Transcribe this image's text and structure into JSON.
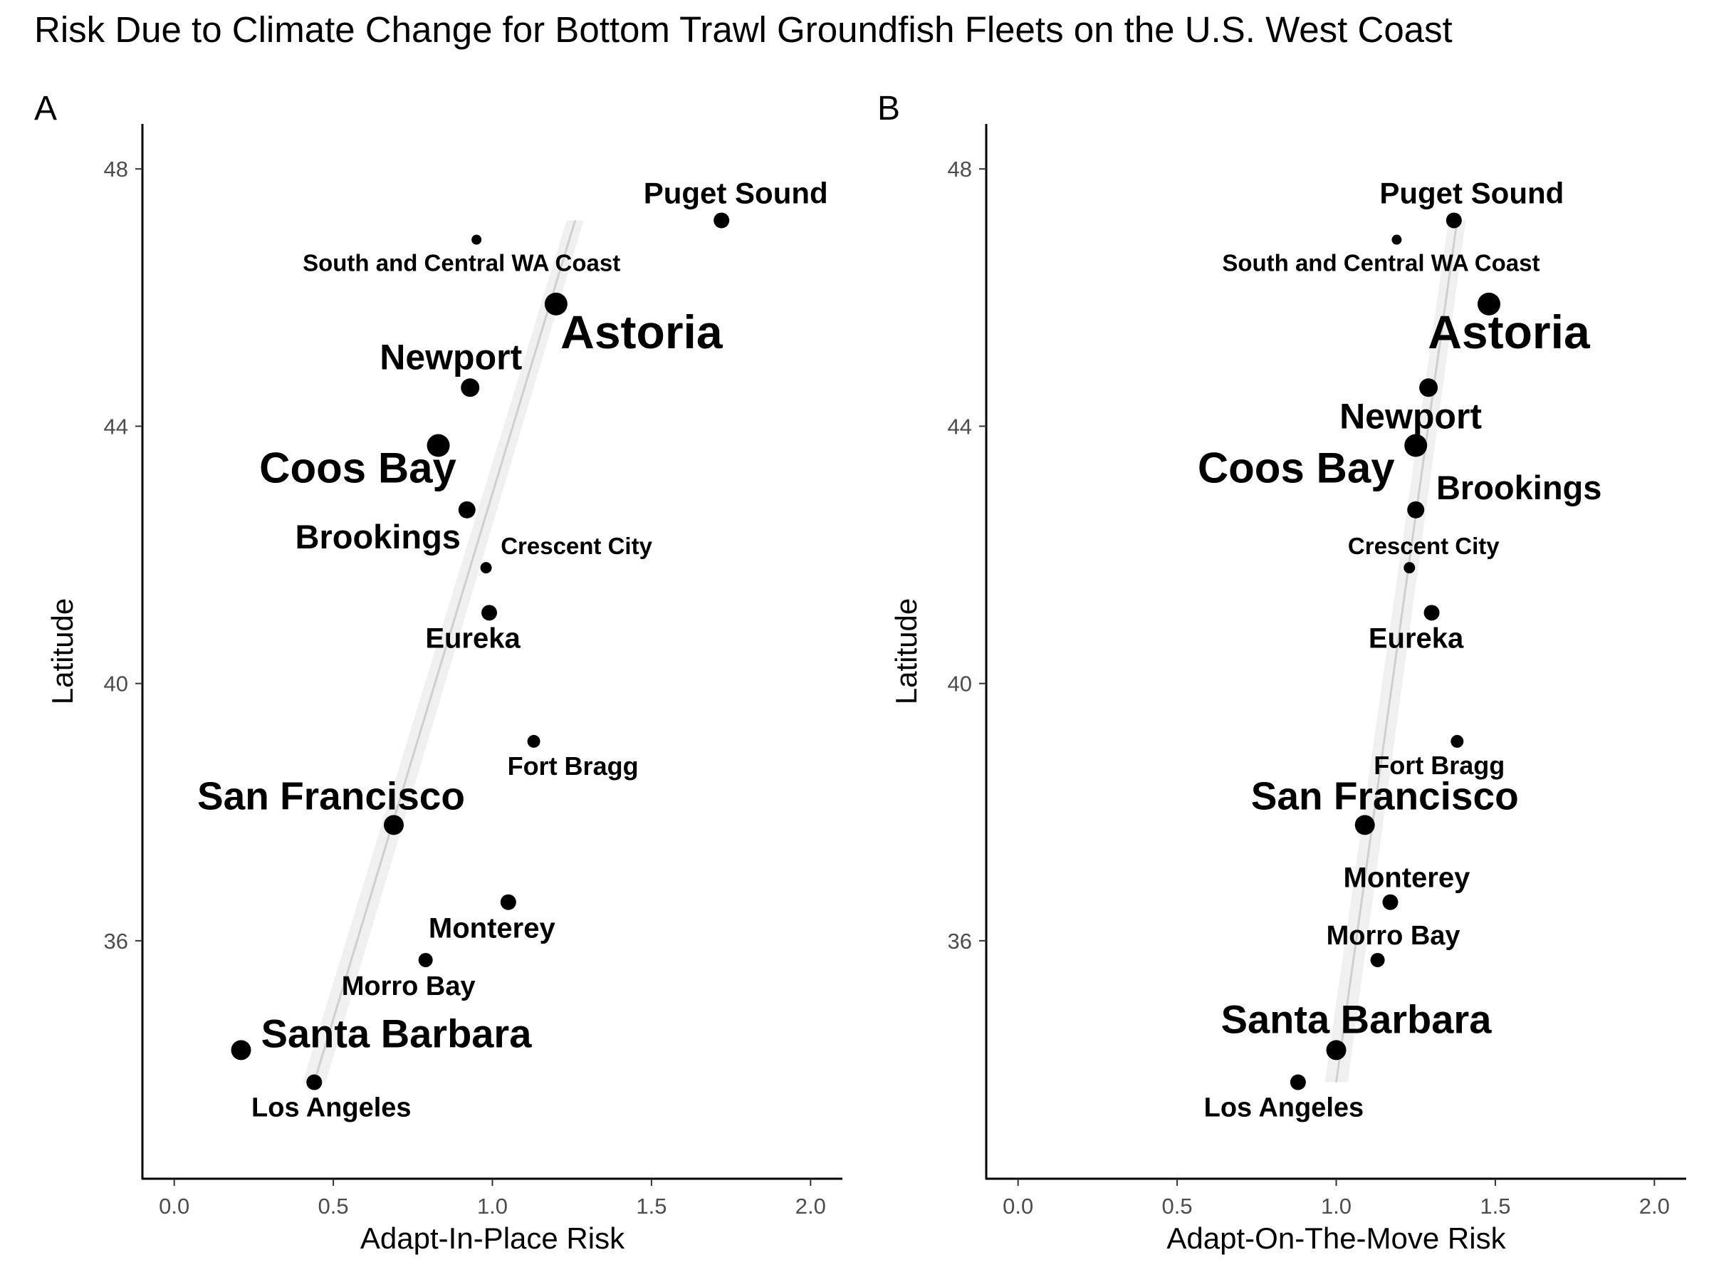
{
  "title": "Risk Due to Climate Change for Bottom Trawl Groundfish Fleets on the U.S. West Coast",
  "chart_data": [
    {
      "type": "scatter",
      "panel_label": "A",
      "xlabel": "Adapt-In-Place Risk",
      "ylabel": "Latitude",
      "xlim": [
        -0.1,
        2.1
      ],
      "ylim": [
        32.3,
        48.7
      ],
      "x_ticks": [
        "0.0",
        "0.5",
        "1.0",
        "1.5",
        "2.0"
      ],
      "y_ticks": [
        "36",
        "40",
        "44",
        "48"
      ],
      "grid": false,
      "trend_line": {
        "x": [
          0.44,
          1.26
        ],
        "y": [
          33.8,
          47.2
        ]
      },
      "points": [
        {
          "name": "Puget Sound",
          "x": 1.72,
          "y": 47.2
        },
        {
          "name": "South and Central WA Coast",
          "x": 0.95,
          "y": 46.9
        },
        {
          "name": "Astoria",
          "x": 1.2,
          "y": 45.9
        },
        {
          "name": "Newport",
          "x": 0.93,
          "y": 44.6
        },
        {
          "name": "Coos Bay",
          "x": 0.83,
          "y": 43.7
        },
        {
          "name": "Brookings",
          "x": 0.92,
          "y": 42.7
        },
        {
          "name": "Crescent City",
          "x": 0.98,
          "y": 41.8
        },
        {
          "name": "Eureka",
          "x": 0.99,
          "y": 41.1
        },
        {
          "name": "Fort Bragg",
          "x": 1.13,
          "y": 39.1
        },
        {
          "name": "San Francisco",
          "x": 0.69,
          "y": 37.8
        },
        {
          "name": "Monterey",
          "x": 1.05,
          "y": 36.6
        },
        {
          "name": "Morro Bay",
          "x": 0.79,
          "y": 35.7
        },
        {
          "name": "Santa Barbara",
          "x": 0.21,
          "y": 34.3
        },
        {
          "name": "Los Angeles",
          "x": 0.44,
          "y": 33.8
        }
      ]
    },
    {
      "type": "scatter",
      "panel_label": "B",
      "xlabel": "Adapt-On-The-Move Risk",
      "ylabel": "Latitude",
      "xlim": [
        -0.1,
        2.1
      ],
      "ylim": [
        32.3,
        48.7
      ],
      "x_ticks": [
        "0.0",
        "0.5",
        "1.0",
        "1.5",
        "2.0"
      ],
      "y_ticks": [
        "36",
        "40",
        "44",
        "48"
      ],
      "grid": false,
      "trend_line": {
        "x": [
          1.0,
          1.38
        ],
        "y": [
          33.8,
          47.2
        ]
      },
      "points": [
        {
          "name": "Puget Sound",
          "x": 1.37,
          "y": 47.2
        },
        {
          "name": "South and Central WA Coast",
          "x": 1.19,
          "y": 46.9
        },
        {
          "name": "Astoria",
          "x": 1.48,
          "y": 45.9
        },
        {
          "name": "Newport",
          "x": 1.29,
          "y": 44.6
        },
        {
          "name": "Coos Bay",
          "x": 1.25,
          "y": 43.7
        },
        {
          "name": "Brookings",
          "x": 1.25,
          "y": 42.7
        },
        {
          "name": "Crescent City",
          "x": 1.23,
          "y": 41.8
        },
        {
          "name": "Eureka",
          "x": 1.3,
          "y": 41.1
        },
        {
          "name": "Fort Bragg",
          "x": 1.38,
          "y": 39.1
        },
        {
          "name": "San Francisco",
          "x": 1.09,
          "y": 37.8
        },
        {
          "name": "Monterey",
          "x": 1.17,
          "y": 36.6
        },
        {
          "name": "Morro Bay",
          "x": 1.13,
          "y": 35.7
        },
        {
          "name": "Santa Barbara",
          "x": 1.0,
          "y": 34.3
        },
        {
          "name": "Los Angeles",
          "x": 0.88,
          "y": 33.8
        }
      ]
    }
  ]
}
